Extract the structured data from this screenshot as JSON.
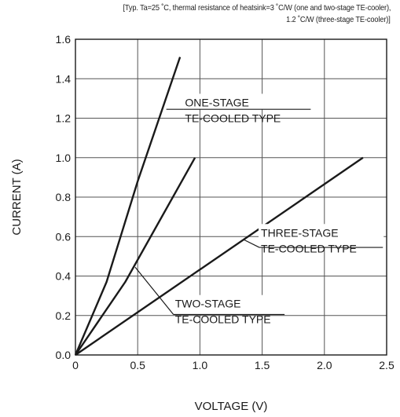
{
  "chart_data": {
    "type": "line",
    "subtitle_line1": "[Typ. Ta=25 ˚C, thermal resistance of heatsink=3 ˚C/W (one and two-stage TE-cooler),",
    "subtitle_line2": "1.2 ˚C/W (three-stage TE-cooler)]",
    "xlabel": "VOLTAGE (V)",
    "ylabel": "CURRENT (A)",
    "xlim": [
      0,
      2.5
    ],
    "ylim": [
      0,
      1.6
    ],
    "xticks": [
      "0",
      "0.5",
      "1.0",
      "1.5",
      "2.0",
      "2.5"
    ],
    "yticks": [
      "0.0",
      "0.2",
      "0.4",
      "0.6",
      "0.8",
      "1.0",
      "1.2",
      "1.4",
      "1.6"
    ],
    "grid": true,
    "series": [
      {
        "x": [
          0,
          0.25,
          0.5,
          0.84
        ],
        "y": [
          0,
          0.37,
          0.88,
          1.51
        ]
      },
      {
        "x": [
          0,
          0.4,
          0.96
        ],
        "y": [
          0,
          0.37,
          1.0
        ]
      },
      {
        "x": [
          0,
          2.31
        ],
        "y": [
          0,
          1.0
        ]
      }
    ],
    "annotations": [
      {
        "lines": [
          "ONE-STAGE",
          "TE-COOLED TYPE"
        ],
        "text_at": [
          0.88,
          1.26
        ],
        "underline_to": 1.89,
        "line_y": 1.245,
        "point": [
          0.73,
          1.245
        ]
      },
      {
        "lines": [
          "THREE-STAGE",
          "TE-COOLED TYPE"
        ],
        "text_at": [
          1.49,
          0.6
        ],
        "underline_to": 2.47,
        "line_y": 0.545,
        "point": [
          1.35,
          0.585
        ]
      },
      {
        "lines": [
          "TWO-STAGE",
          "TE-COOLED TYPE"
        ],
        "text_at": [
          0.8,
          0.24
        ],
        "underline_to": 1.68,
        "line_y": 0.205,
        "point": [
          0.48,
          0.445
        ]
      }
    ]
  }
}
